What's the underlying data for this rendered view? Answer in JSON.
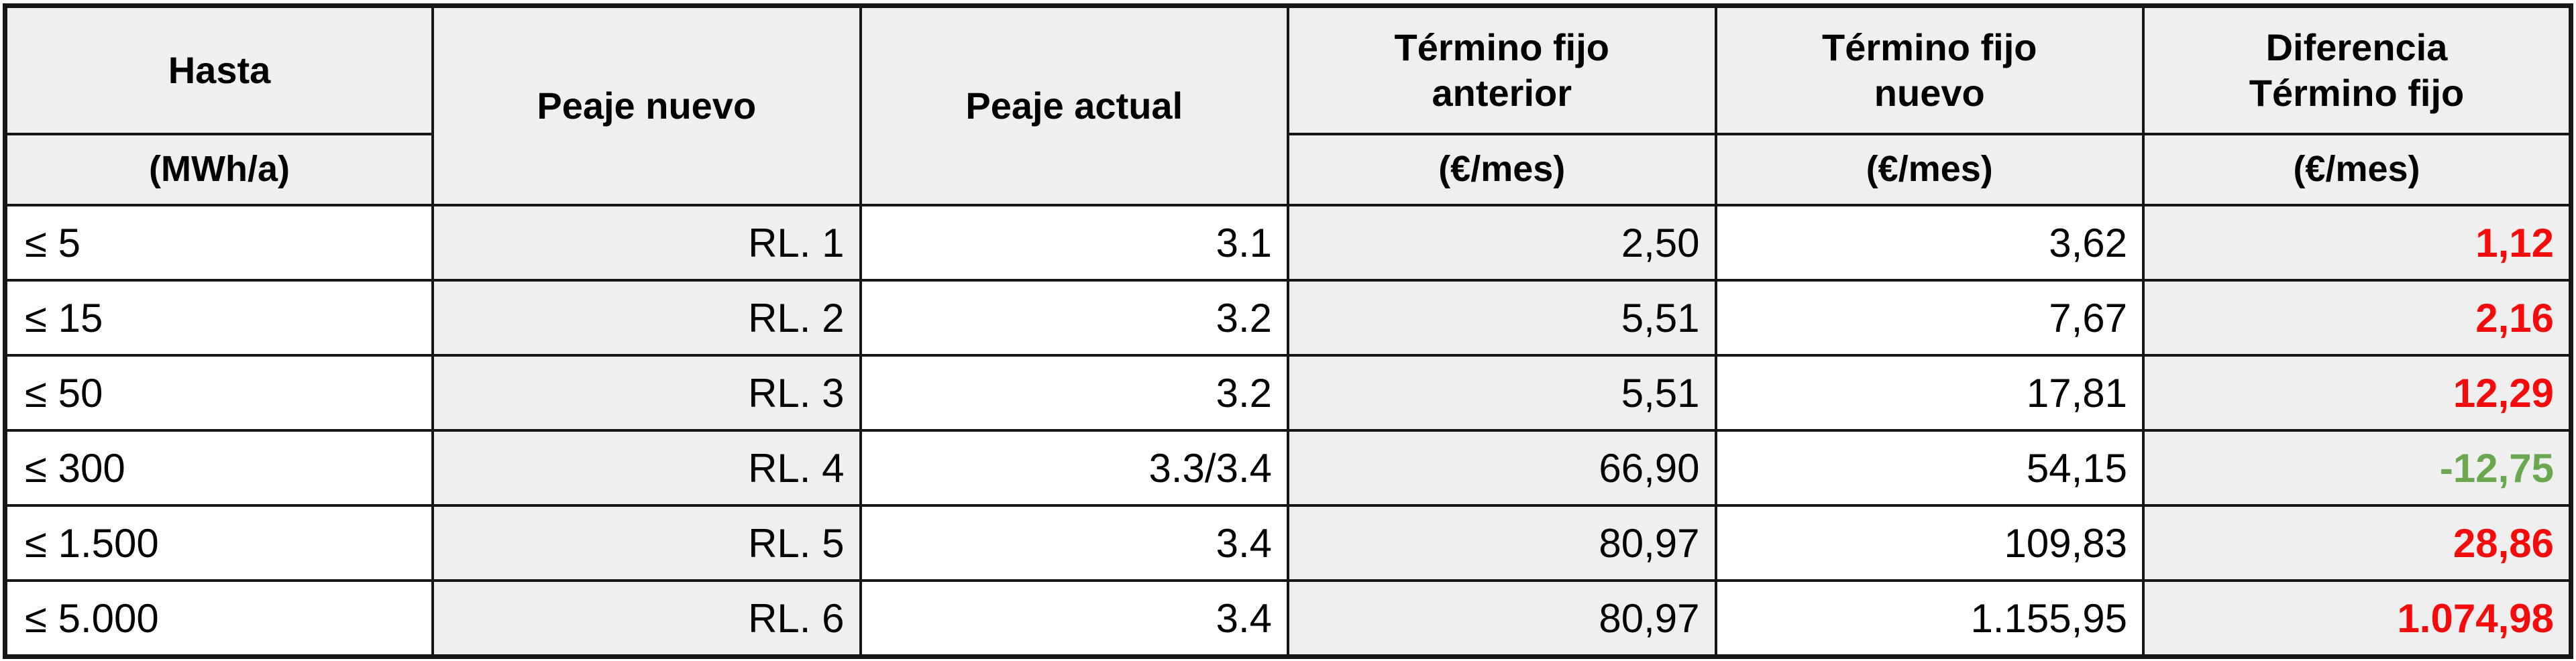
{
  "table": {
    "header": {
      "hasta_title": "Hasta",
      "hasta_unit": "(MWh/a)",
      "peaje_nuevo_title": "Peaje nuevo",
      "peaje_actual_title": "Peaje actual",
      "tf_anterior_line1": "Término fijo",
      "tf_anterior_line2": "anterior",
      "tf_anterior_unit": "(€/mes)",
      "tf_nuevo_line1": "Término fijo",
      "tf_nuevo_line2": "nuevo",
      "tf_nuevo_unit": "(€/mes)",
      "diferencia_line1": "Diferencia",
      "diferencia_line2": "Término fijo",
      "diferencia_unit": "(€/mes)"
    },
    "rows": [
      {
        "hasta": "≤ 5",
        "peaje_nuevo": "RL. 1",
        "peaje_actual": "3.1",
        "tf_anterior": "2,50",
        "tf_nuevo": "3,62",
        "diferencia": "1,12",
        "trend": "up"
      },
      {
        "hasta": "≤ 15",
        "peaje_nuevo": "RL. 2",
        "peaje_actual": "3.2",
        "tf_anterior": "5,51",
        "tf_nuevo": "7,67",
        "diferencia": "2,16",
        "trend": "up"
      },
      {
        "hasta": "≤ 50",
        "peaje_nuevo": "RL. 3",
        "peaje_actual": "3.2",
        "tf_anterior": "5,51",
        "tf_nuevo": "17,81",
        "diferencia": "12,29",
        "trend": "up"
      },
      {
        "hasta": "≤ 300",
        "peaje_nuevo": "RL. 4",
        "peaje_actual": "3.3/3.4",
        "tf_anterior": "66,90",
        "tf_nuevo": "54,15",
        "diferencia": "-12,75",
        "trend": "down"
      },
      {
        "hasta": "≤ 1.500",
        "peaje_nuevo": "RL. 5",
        "peaje_actual": "3.4",
        "tf_anterior": "80,97",
        "tf_nuevo": "109,83",
        "diferencia": "28,86",
        "trend": "up"
      },
      {
        "hasta": "≤ 5.000",
        "peaje_nuevo": "RL. 6",
        "peaje_actual": "3.4",
        "tf_anterior": "80,97",
        "tf_nuevo": "1.155,95",
        "diferencia": "1.074,98",
        "trend": "up"
      }
    ]
  },
  "colors": {
    "increase_text": "#f40b0b",
    "decrease_text": "#6aa84f",
    "shaded_cell": "#efefef",
    "border": "#161616",
    "text": "#000000"
  }
}
